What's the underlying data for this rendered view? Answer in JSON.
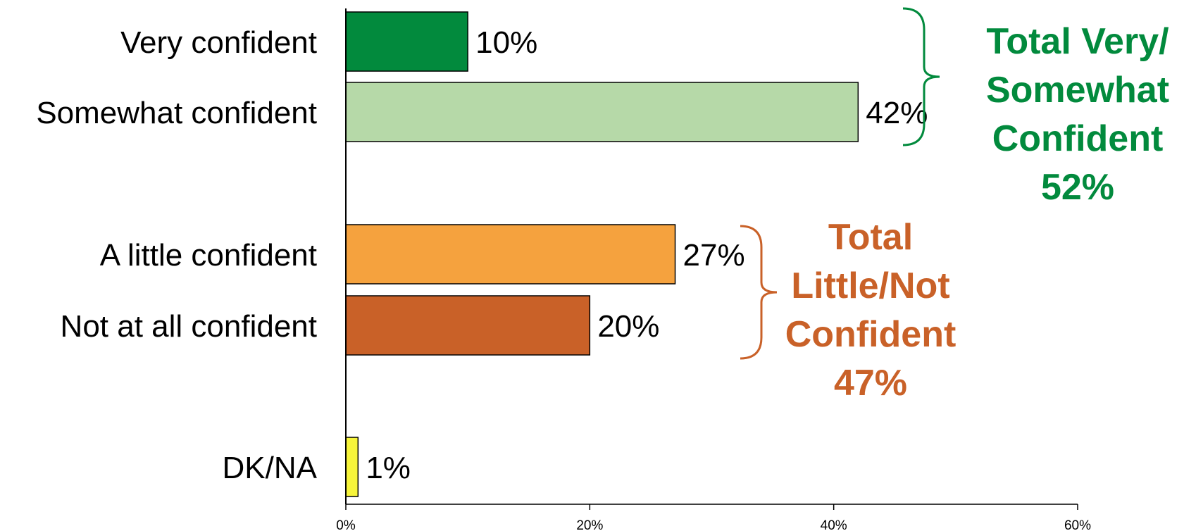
{
  "chart_data": {
    "type": "bar",
    "orientation": "horizontal",
    "categories": [
      "Very confident",
      "Somewhat confident",
      "A little confident",
      "Not at all confident",
      "DK/NA"
    ],
    "values": [
      10,
      42,
      27,
      20,
      1
    ],
    "value_labels": [
      "10%",
      "42%",
      "27%",
      "20%",
      "1%"
    ],
    "bar_colors": [
      "#028A3D",
      "#B6D9A8",
      "#F5A23E",
      "#C96128",
      "#F7F53A"
    ],
    "xlim": [
      0,
      60
    ],
    "xticks": [
      0,
      20,
      40,
      60
    ],
    "xtick_labels": [
      "0%",
      "20%",
      "40%",
      "60%"
    ],
    "grid": false,
    "legend": "none",
    "groups": [
      {
        "lines": [
          "Total Very/",
          "Somewhat",
          "Confident",
          "52%"
        ],
        "color": "#028A3D",
        "categories": [
          "Very confident",
          "Somewhat confident"
        ]
      },
      {
        "lines": [
          "Total",
          "Little/Not",
          "Confident",
          "47%"
        ],
        "color": "#C96128",
        "categories": [
          "A little confident",
          "Not at all confident"
        ]
      }
    ]
  }
}
